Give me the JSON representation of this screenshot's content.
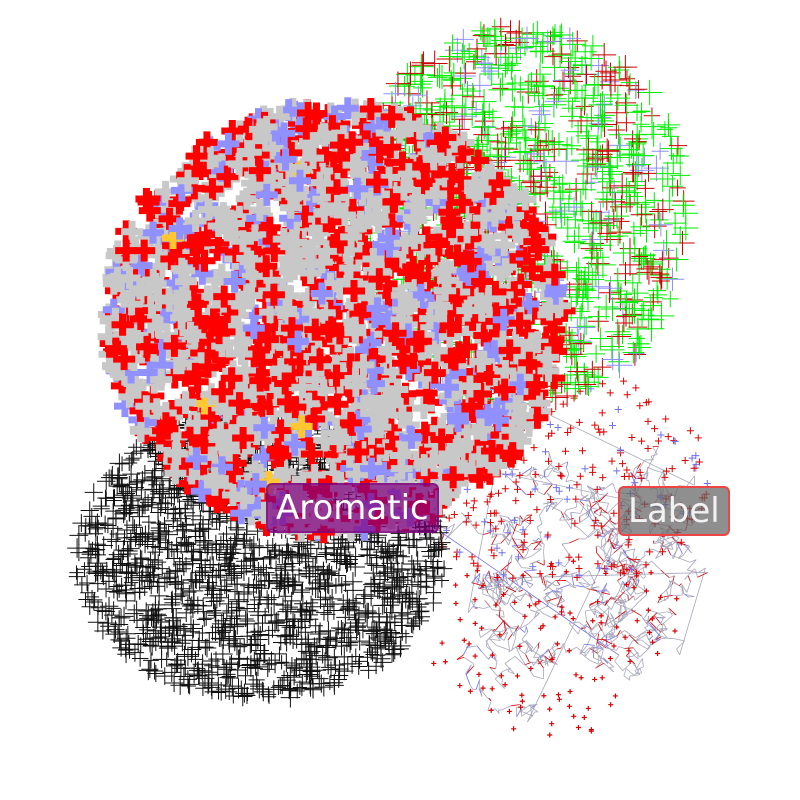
{
  "viewer": {
    "background": "#ffffff",
    "molecules": [
      {
        "style": "thick-crosses",
        "colors": {
          "carbon": "#c8c8c8",
          "oxygen": "#ff0000",
          "nitrogen": "#9090ff",
          "sulfur": "#ffc832"
        }
      },
      {
        "style": "line-crosses",
        "colors": {
          "primary": "#00ee00",
          "secondary": "#cc0000",
          "tertiary": "#9090ff"
        }
      },
      {
        "style": "black-crosses",
        "colors": {
          "primary": "#111111"
        }
      },
      {
        "style": "wireframe",
        "colors": {
          "carbon": "#a8a8bc",
          "oxygen": "#dd0000",
          "nitrogen": "#7070ee"
        }
      }
    ],
    "labels": {
      "aromatic": {
        "text": "Aromatic",
        "background": "#800080"
      },
      "generic": {
        "text": "Label",
        "background": "#646464",
        "border": "#ee4444"
      }
    }
  }
}
